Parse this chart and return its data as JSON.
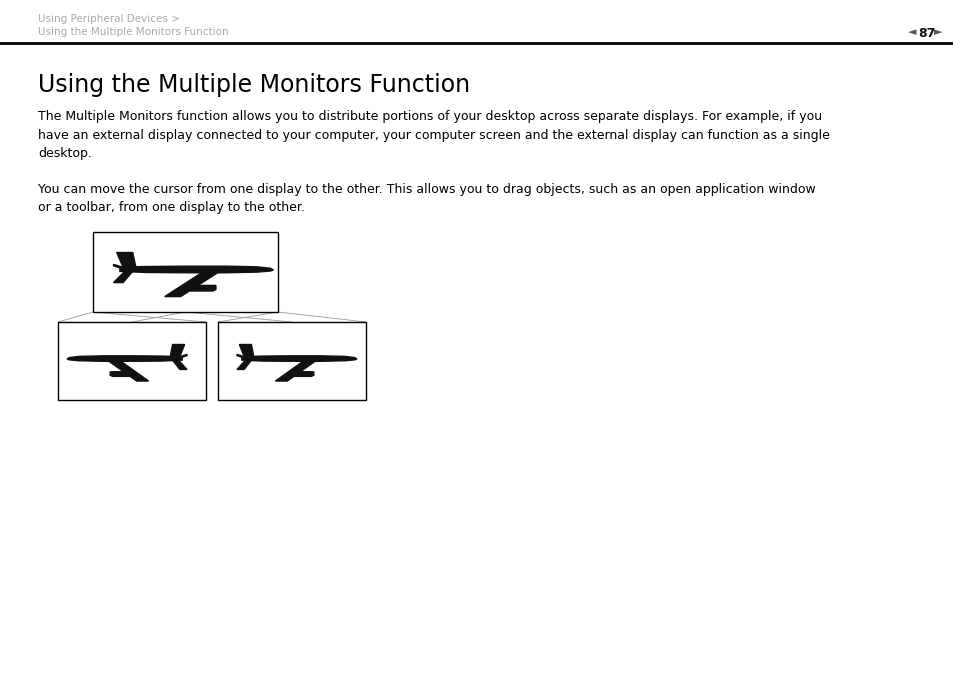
{
  "bg_color": "#ffffff",
  "header_text1": "Using Peripheral Devices >",
  "header_text2": "Using the Multiple Monitors Function",
  "header_page": "87",
  "header_color": "#aaaaaa",
  "title": "Using the Multiple Monitors Function",
  "para1": "The Multiple Monitors function allows you to distribute portions of your desktop across separate displays. For example, if you\nhave an external display connected to your computer, your computer screen and the external display can function as a single\ndesktop.",
  "para2": "You can move the cursor from one display to the other. This allows you to drag objects, such as an open application window\nor a toolbar, from one display to the other.",
  "title_fontsize": 17,
  "body_fontsize": 9,
  "header_fontsize": 7.5
}
